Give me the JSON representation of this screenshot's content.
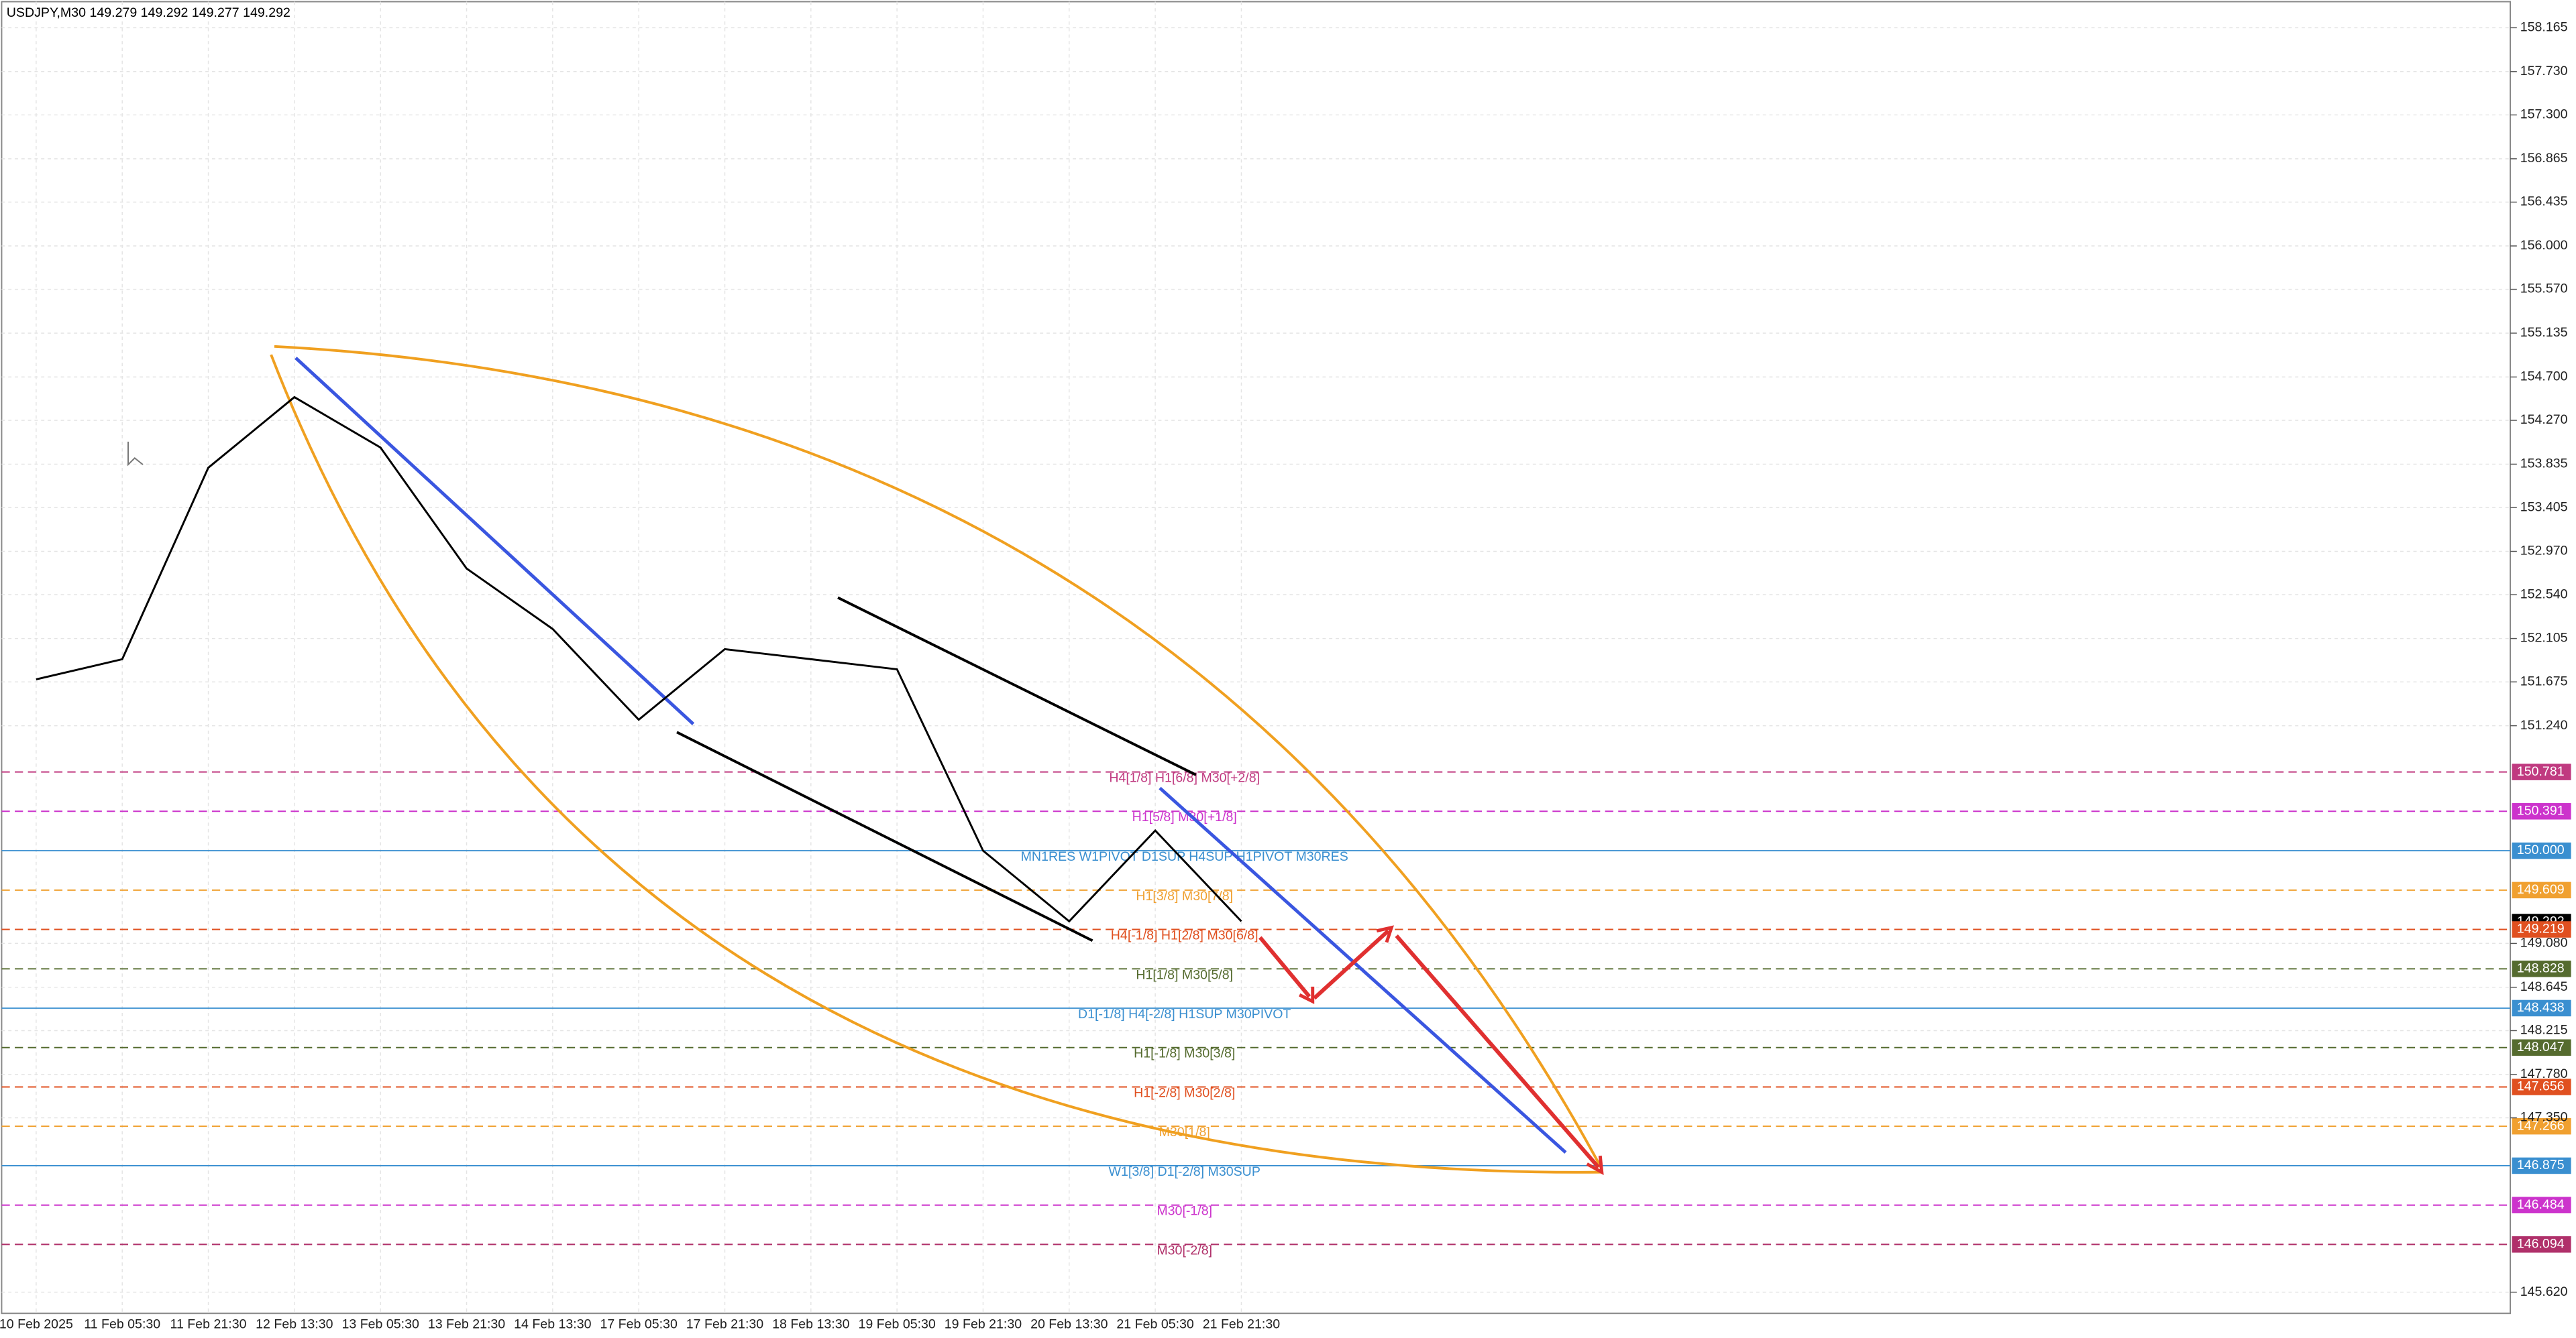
{
  "chart_data": {
    "type": "line",
    "title": "USDJPY,M30  149.279 149.292 149.277 149.292",
    "categories": [
      "10 Feb 2025",
      "11 Feb 05:30",
      "11 Feb 21:30",
      "12 Feb 13:30",
      "13 Feb 05:30",
      "13 Feb 21:30",
      "14 Feb 13:30",
      "17 Feb 05:30",
      "17 Feb 21:30",
      "18 Feb 13:30",
      "19 Feb 05:30",
      "19 Feb 21:30",
      "20 Feb 13:30",
      "21 Feb 05:30",
      "21 Feb 21:30"
    ],
    "series": [
      {
        "name": "USDJPY",
        "color": "#000000",
        "values": [
          151.7,
          151.9,
          153.8,
          154.5,
          154.0,
          152.8,
          152.2,
          151.3,
          152.0,
          151.9,
          151.8,
          150.0,
          149.3,
          150.2,
          149.3
        ]
      }
    ],
    "ylim": [
      145.41,
      158.44
    ],
    "yticks": [
      158.165,
      {
        "value": 157.73,
        "label": "157.730"
      },
      {
        "value": 157.3,
        "label": "157.300"
      },
      156.865,
      156.435,
      {
        "value": 156,
        "label": "156.000"
      },
      {
        "value": 155.57,
        "label": "155.570"
      },
      155.135,
      {
        "value": 154.7,
        "label": "154.700"
      },
      {
        "value": 154.27,
        "label": "154.270"
      },
      153.835,
      153.405,
      {
        "value": 152.97,
        "label": "152.970"
      },
      {
        "value": 152.54,
        "label": "152.540"
      },
      152.105,
      151.675,
      {
        "value": 151.24,
        "label": "151.240"
      },
      {
        "value": 149.08,
        "label": "149.080"
      },
      148.645,
      148.215,
      {
        "value": 147.78,
        "label": "147.780"
      },
      {
        "value": 147.35,
        "label": "147.350"
      },
      {
        "value": 145.62,
        "label": "145.620"
      }
    ],
    "grid": true,
    "levels": [
      {
        "value": 150.781,
        "text": "H4[1/8] H1[6/8] M30[+2/8]",
        "color": "#c03a80",
        "style": "dashed"
      },
      {
        "value": 150.391,
        "text": "H1[5/8] M30[+1/8]",
        "color": "#cc33cc",
        "style": "dashed"
      },
      {
        "value": 150,
        "value_label": "150.000",
        "text": "MN1RES W1PIVOT D1SUP H4SUP H1PIVOT M30RES",
        "color": "#3a8fd0",
        "style": "solid"
      },
      {
        "value": 149.609,
        "text": "H1[3/8] M30[7/8]",
        "color": "#f0a030",
        "style": "dashed"
      },
      {
        "value": 149.292,
        "color": "#000000",
        "style": "none"
      },
      {
        "value": 149.219,
        "text": "H4[-1/8] H1[2/8] M30[6/8]",
        "color": "#e05020",
        "style": "dashed"
      },
      {
        "value": 148.828,
        "text": "H1[1/8] M30[5/8]",
        "color": "#556b2f",
        "style": "dashed"
      },
      {
        "value": 148.438,
        "text": "D1[-1/8] H4[-2/8] H1SUP M30PIVOT",
        "color": "#3a8fd0",
        "style": "solid"
      },
      {
        "value": 148.047,
        "text": "H1[-1/8] M30[3/8]",
        "color": "#556b2f",
        "style": "dashed"
      },
      {
        "value": 147.656,
        "text": "H1[-2/8] M30[2/8]",
        "color": "#e05020",
        "style": "dashed"
      },
      {
        "value": 147.266,
        "text": "M30[1/8]",
        "color": "#f0a030",
        "style": "dashed"
      },
      {
        "value": 146.875,
        "text": "W1[3/8] D1[-2/8] M30SUP",
        "color": "#3a8fd0",
        "style": "solid"
      },
      {
        "value": 146.484,
        "text": "M30[-1/8]",
        "color": "#cc33cc",
        "style": "dashed"
      },
      {
        "value": 146.094,
        "text": "M30[-2/8]",
        "color": "#b0306a",
        "style": "dashed"
      }
    ]
  }
}
